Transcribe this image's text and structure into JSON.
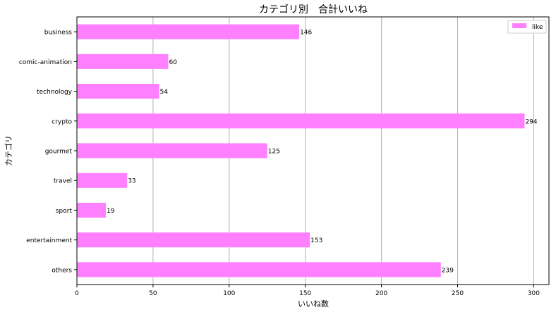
{
  "chart_data": {
    "type": "bar",
    "orientation": "horizontal",
    "title": "カテゴリ別　合計いいね",
    "xlabel": "いいね数",
    "ylabel": "カテゴリ",
    "categories": [
      "business",
      "comic-animation",
      "technology",
      "crypto",
      "gourmet",
      "travel",
      "sport",
      "entertainment",
      "others"
    ],
    "series": [
      {
        "name": "like",
        "values": [
          146,
          60,
          54,
          294,
          125,
          33,
          19,
          153,
          239
        ],
        "color": "#ff80ff"
      }
    ],
    "xlim": [
      0,
      310
    ],
    "xticks": [
      0,
      50,
      100,
      150,
      200,
      250,
      300
    ],
    "grid": "x",
    "legend_position": "top-right",
    "show_data_labels": true
  }
}
